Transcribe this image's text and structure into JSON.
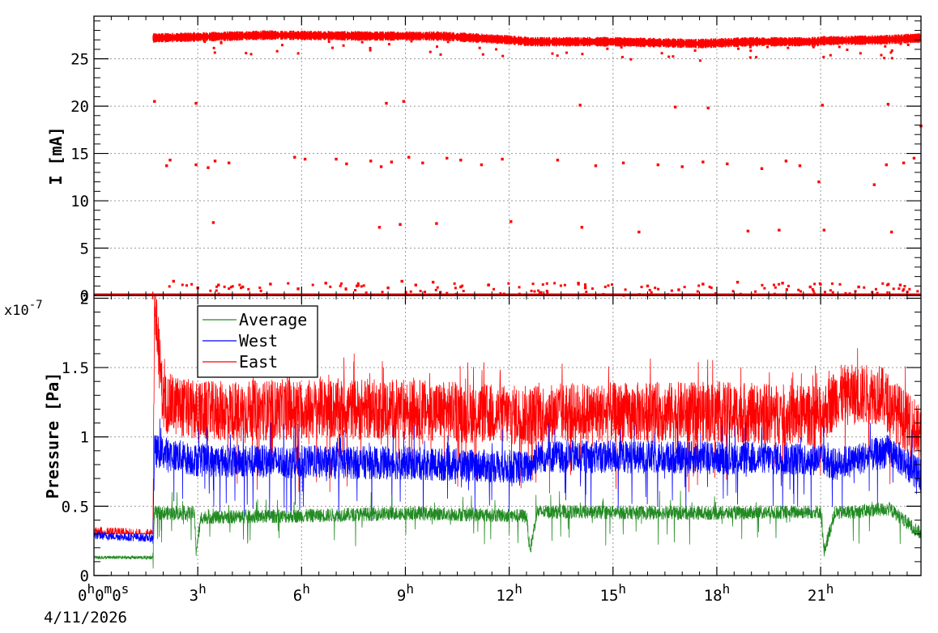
{
  "chart_data": [
    {
      "type": "scatter",
      "title": "",
      "xlabel": "",
      "ylabel": "I [mA]",
      "ylim": [
        0,
        29.5
      ],
      "xlim_hours": [
        0,
        23.9
      ],
      "grid": true,
      "y_ticks": [
        "0",
        "5",
        "10",
        "15",
        "20",
        "25"
      ],
      "series": [
        {
          "color": "#ff0000",
          "description_points": [
            {
              "x": 0,
              "y": 0
            },
            {
              "x": 1.7,
              "y": 0
            },
            {
              "x": 1.7,
              "y": 27.2
            },
            {
              "x": 3,
              "y": 27.3
            },
            {
              "x": 5,
              "y": 27.5
            },
            {
              "x": 8,
              "y": 27.4
            },
            {
              "x": 10,
              "y": 27.4
            },
            {
              "x": 12,
              "y": 27.0
            },
            {
              "x": 12.6,
              "y": 26.8
            },
            {
              "x": 15,
              "y": 26.8
            },
            {
              "x": 17.5,
              "y": 26.6
            },
            {
              "x": 19,
              "y": 26.8
            },
            {
              "x": 20.9,
              "y": 26.8
            },
            {
              "x": 21,
              "y": 26.9
            },
            {
              "x": 22.8,
              "y": 27.0
            },
            {
              "x": 23.9,
              "y": 27.2
            }
          ],
          "scattered_values": [
            {
              "x": 1.75,
              "y": 20.5
            },
            {
              "x": 2.95,
              "y": 20.3
            },
            {
              "x": 8.45,
              "y": 20.3
            },
            {
              "x": 8.95,
              "y": 20.5
            },
            {
              "x": 14.05,
              "y": 20.1
            },
            {
              "x": 16.8,
              "y": 19.9
            },
            {
              "x": 17.75,
              "y": 19.8
            },
            {
              "x": 21.05,
              "y": 20.1
            },
            {
              "x": 22.95,
              "y": 20.2
            },
            {
              "x": 23.9,
              "y": 17.9
            },
            {
              "x": 2.1,
              "y": 13.7
            },
            {
              "x": 2.2,
              "y": 14.3
            },
            {
              "x": 2.95,
              "y": 13.8
            },
            {
              "x": 3.3,
              "y": 13.5
            },
            {
              "x": 3.5,
              "y": 14.2
            },
            {
              "x": 3.9,
              "y": 14.0
            },
            {
              "x": 5.8,
              "y": 14.6
            },
            {
              "x": 6.1,
              "y": 14.4
            },
            {
              "x": 7.0,
              "y": 14.4
            },
            {
              "x": 7.3,
              "y": 13.9
            },
            {
              "x": 8.0,
              "y": 14.2
            },
            {
              "x": 8.3,
              "y": 13.6
            },
            {
              "x": 8.6,
              "y": 14.1
            },
            {
              "x": 9.1,
              "y": 14.6
            },
            {
              "x": 9.5,
              "y": 14.0
            },
            {
              "x": 10.2,
              "y": 14.5
            },
            {
              "x": 10.6,
              "y": 14.3
            },
            {
              "x": 11.2,
              "y": 13.8
            },
            {
              "x": 11.8,
              "y": 14.4
            },
            {
              "x": 13.4,
              "y": 14.3
            },
            {
              "x": 14.5,
              "y": 13.7
            },
            {
              "x": 15.3,
              "y": 14.0
            },
            {
              "x": 16.3,
              "y": 13.8
            },
            {
              "x": 17.0,
              "y": 13.6
            },
            {
              "x": 17.6,
              "y": 14.1
            },
            {
              "x": 18.3,
              "y": 13.9
            },
            {
              "x": 19.3,
              "y": 13.4
            },
            {
              "x": 20.0,
              "y": 14.2
            },
            {
              "x": 20.4,
              "y": 13.7
            },
            {
              "x": 20.95,
              "y": 12.0
            },
            {
              "x": 22.55,
              "y": 11.7
            },
            {
              "x": 22.9,
              "y": 13.8
            },
            {
              "x": 23.4,
              "y": 14.0
            },
            {
              "x": 23.7,
              "y": 14.5
            },
            {
              "x": 3.45,
              "y": 7.7
            },
            {
              "x": 8.25,
              "y": 7.2
            },
            {
              "x": 8.85,
              "y": 7.5
            },
            {
              "x": 9.9,
              "y": 7.6
            },
            {
              "x": 12.05,
              "y": 7.8
            },
            {
              "x": 14.1,
              "y": 7.2
            },
            {
              "x": 15.75,
              "y": 6.7
            },
            {
              "x": 18.9,
              "y": 6.8
            },
            {
              "x": 19.8,
              "y": 6.9
            },
            {
              "x": 21.1,
              "y": 6.9
            },
            {
              "x": 23.05,
              "y": 6.7
            },
            {
              "x": 2.3,
              "y": 1.5
            },
            {
              "x": 3.0,
              "y": 0.8
            },
            {
              "x": 3.6,
              "y": 1.1
            },
            {
              "x": 4.3,
              "y": 0.9
            },
            {
              "x": 5.1,
              "y": 1.2
            },
            {
              "x": 5.9,
              "y": 0.7
            },
            {
              "x": 6.7,
              "y": 1.3
            },
            {
              "x": 7.6,
              "y": 1.0
            },
            {
              "x": 8.5,
              "y": 0.8
            },
            {
              "x": 8.9,
              "y": 1.5
            },
            {
              "x": 9.3,
              "y": 1.1
            },
            {
              "x": 9.8,
              "y": 1.4
            },
            {
              "x": 10.6,
              "y": 0.9
            },
            {
              "x": 11.4,
              "y": 1.1
            },
            {
              "x": 14.0,
              "y": 1.3
            },
            {
              "x": 14.2,
              "y": 0.8
            },
            {
              "x": 16.0,
              "y": 1.0
            },
            {
              "x": 16.9,
              "y": 0.6
            },
            {
              "x": 17.6,
              "y": 1.2
            },
            {
              "x": 18.6,
              "y": 1.4
            },
            {
              "x": 19.9,
              "y": 1.3
            },
            {
              "x": 20.7,
              "y": 0.9
            },
            {
              "x": 22.1,
              "y": 0.9
            },
            {
              "x": 23.3,
              "y": 1.1
            }
          ]
        }
      ]
    },
    {
      "type": "line",
      "title": "",
      "xlabel": "",
      "ylabel": "Pressure [Pa]",
      "y_exponent_label": "x10",
      "y_exponent_power": "-7",
      "ylim": [
        0,
        2.02
      ],
      "xlim_hours": [
        0,
        23.9
      ],
      "grid": true,
      "legend_position": "top-left",
      "y_ticks": [
        "0",
        "0.5",
        "1",
        "1.5",
        "2"
      ],
      "x_ticks": [
        {
          "hours": 3,
          "base": "3",
          "sup": "h"
        },
        {
          "hours": 6,
          "base": "6",
          "sup": "h"
        },
        {
          "hours": 9,
          "base": "9",
          "sup": "h"
        },
        {
          "hours": 12,
          "base": "12",
          "sup": "h"
        },
        {
          "hours": 15,
          "base": "15",
          "sup": "h"
        },
        {
          "hours": 18,
          "base": "18",
          "sup": "h"
        },
        {
          "hours": 21,
          "base": "21",
          "sup": "h"
        }
      ],
      "x_origin_label": {
        "parts": [
          "0",
          "h",
          "0",
          "m",
          "0",
          "s"
        ],
        "date": "4/11/2026"
      },
      "series": [
        {
          "name": "Average",
          "color": "#228b22",
          "values": [
            {
              "x": 0,
              "y": 0.13
            },
            {
              "x": 1.7,
              "y": 0.13
            },
            {
              "x": 1.75,
              "y": 0.45
            },
            {
              "x": 2.9,
              "y": 0.45
            },
            {
              "x": 2.95,
              "y": 0.18
            },
            {
              "x": 3.1,
              "y": 0.42
            },
            {
              "x": 6,
              "y": 0.43
            },
            {
              "x": 9,
              "y": 0.45
            },
            {
              "x": 12.5,
              "y": 0.43
            },
            {
              "x": 12.6,
              "y": 0.17
            },
            {
              "x": 12.8,
              "y": 0.46
            },
            {
              "x": 18,
              "y": 0.45
            },
            {
              "x": 21,
              "y": 0.46
            },
            {
              "x": 21.1,
              "y": 0.17
            },
            {
              "x": 21.4,
              "y": 0.45
            },
            {
              "x": 23,
              "y": 0.48
            },
            {
              "x": 23.9,
              "y": 0.3
            }
          ]
        },
        {
          "name": "West",
          "color": "#0000ff",
          "values": [
            {
              "x": 0,
              "y": 0.29
            },
            {
              "x": 1.7,
              "y": 0.27
            },
            {
              "x": 1.75,
              "y": 0.9
            },
            {
              "x": 3,
              "y": 0.83
            },
            {
              "x": 6,
              "y": 0.82
            },
            {
              "x": 9,
              "y": 0.81
            },
            {
              "x": 12.6,
              "y": 0.78
            },
            {
              "x": 12.8,
              "y": 0.86
            },
            {
              "x": 18,
              "y": 0.85
            },
            {
              "x": 21,
              "y": 0.84
            },
            {
              "x": 21.4,
              "y": 0.8
            },
            {
              "x": 23,
              "y": 0.9
            },
            {
              "x": 23.9,
              "y": 0.72
            }
          ]
        },
        {
          "name": "East",
          "color": "#ff0000",
          "values": [
            {
              "x": 0,
              "y": 0.3
            },
            {
              "x": 1.7,
              "y": 0.28
            },
            {
              "x": 1.75,
              "y": 1.96
            },
            {
              "x": 2.0,
              "y": 1.25
            },
            {
              "x": 3,
              "y": 1.18
            },
            {
              "x": 6,
              "y": 1.2
            },
            {
              "x": 9,
              "y": 1.2
            },
            {
              "x": 12.6,
              "y": 1.15
            },
            {
              "x": 12.8,
              "y": 1.17
            },
            {
              "x": 18,
              "y": 1.18
            },
            {
              "x": 21,
              "y": 1.15
            },
            {
              "x": 21.5,
              "y": 1.3
            },
            {
              "x": 22.7,
              "y": 1.31
            },
            {
              "x": 23.9,
              "y": 1.0
            }
          ]
        }
      ]
    }
  ]
}
